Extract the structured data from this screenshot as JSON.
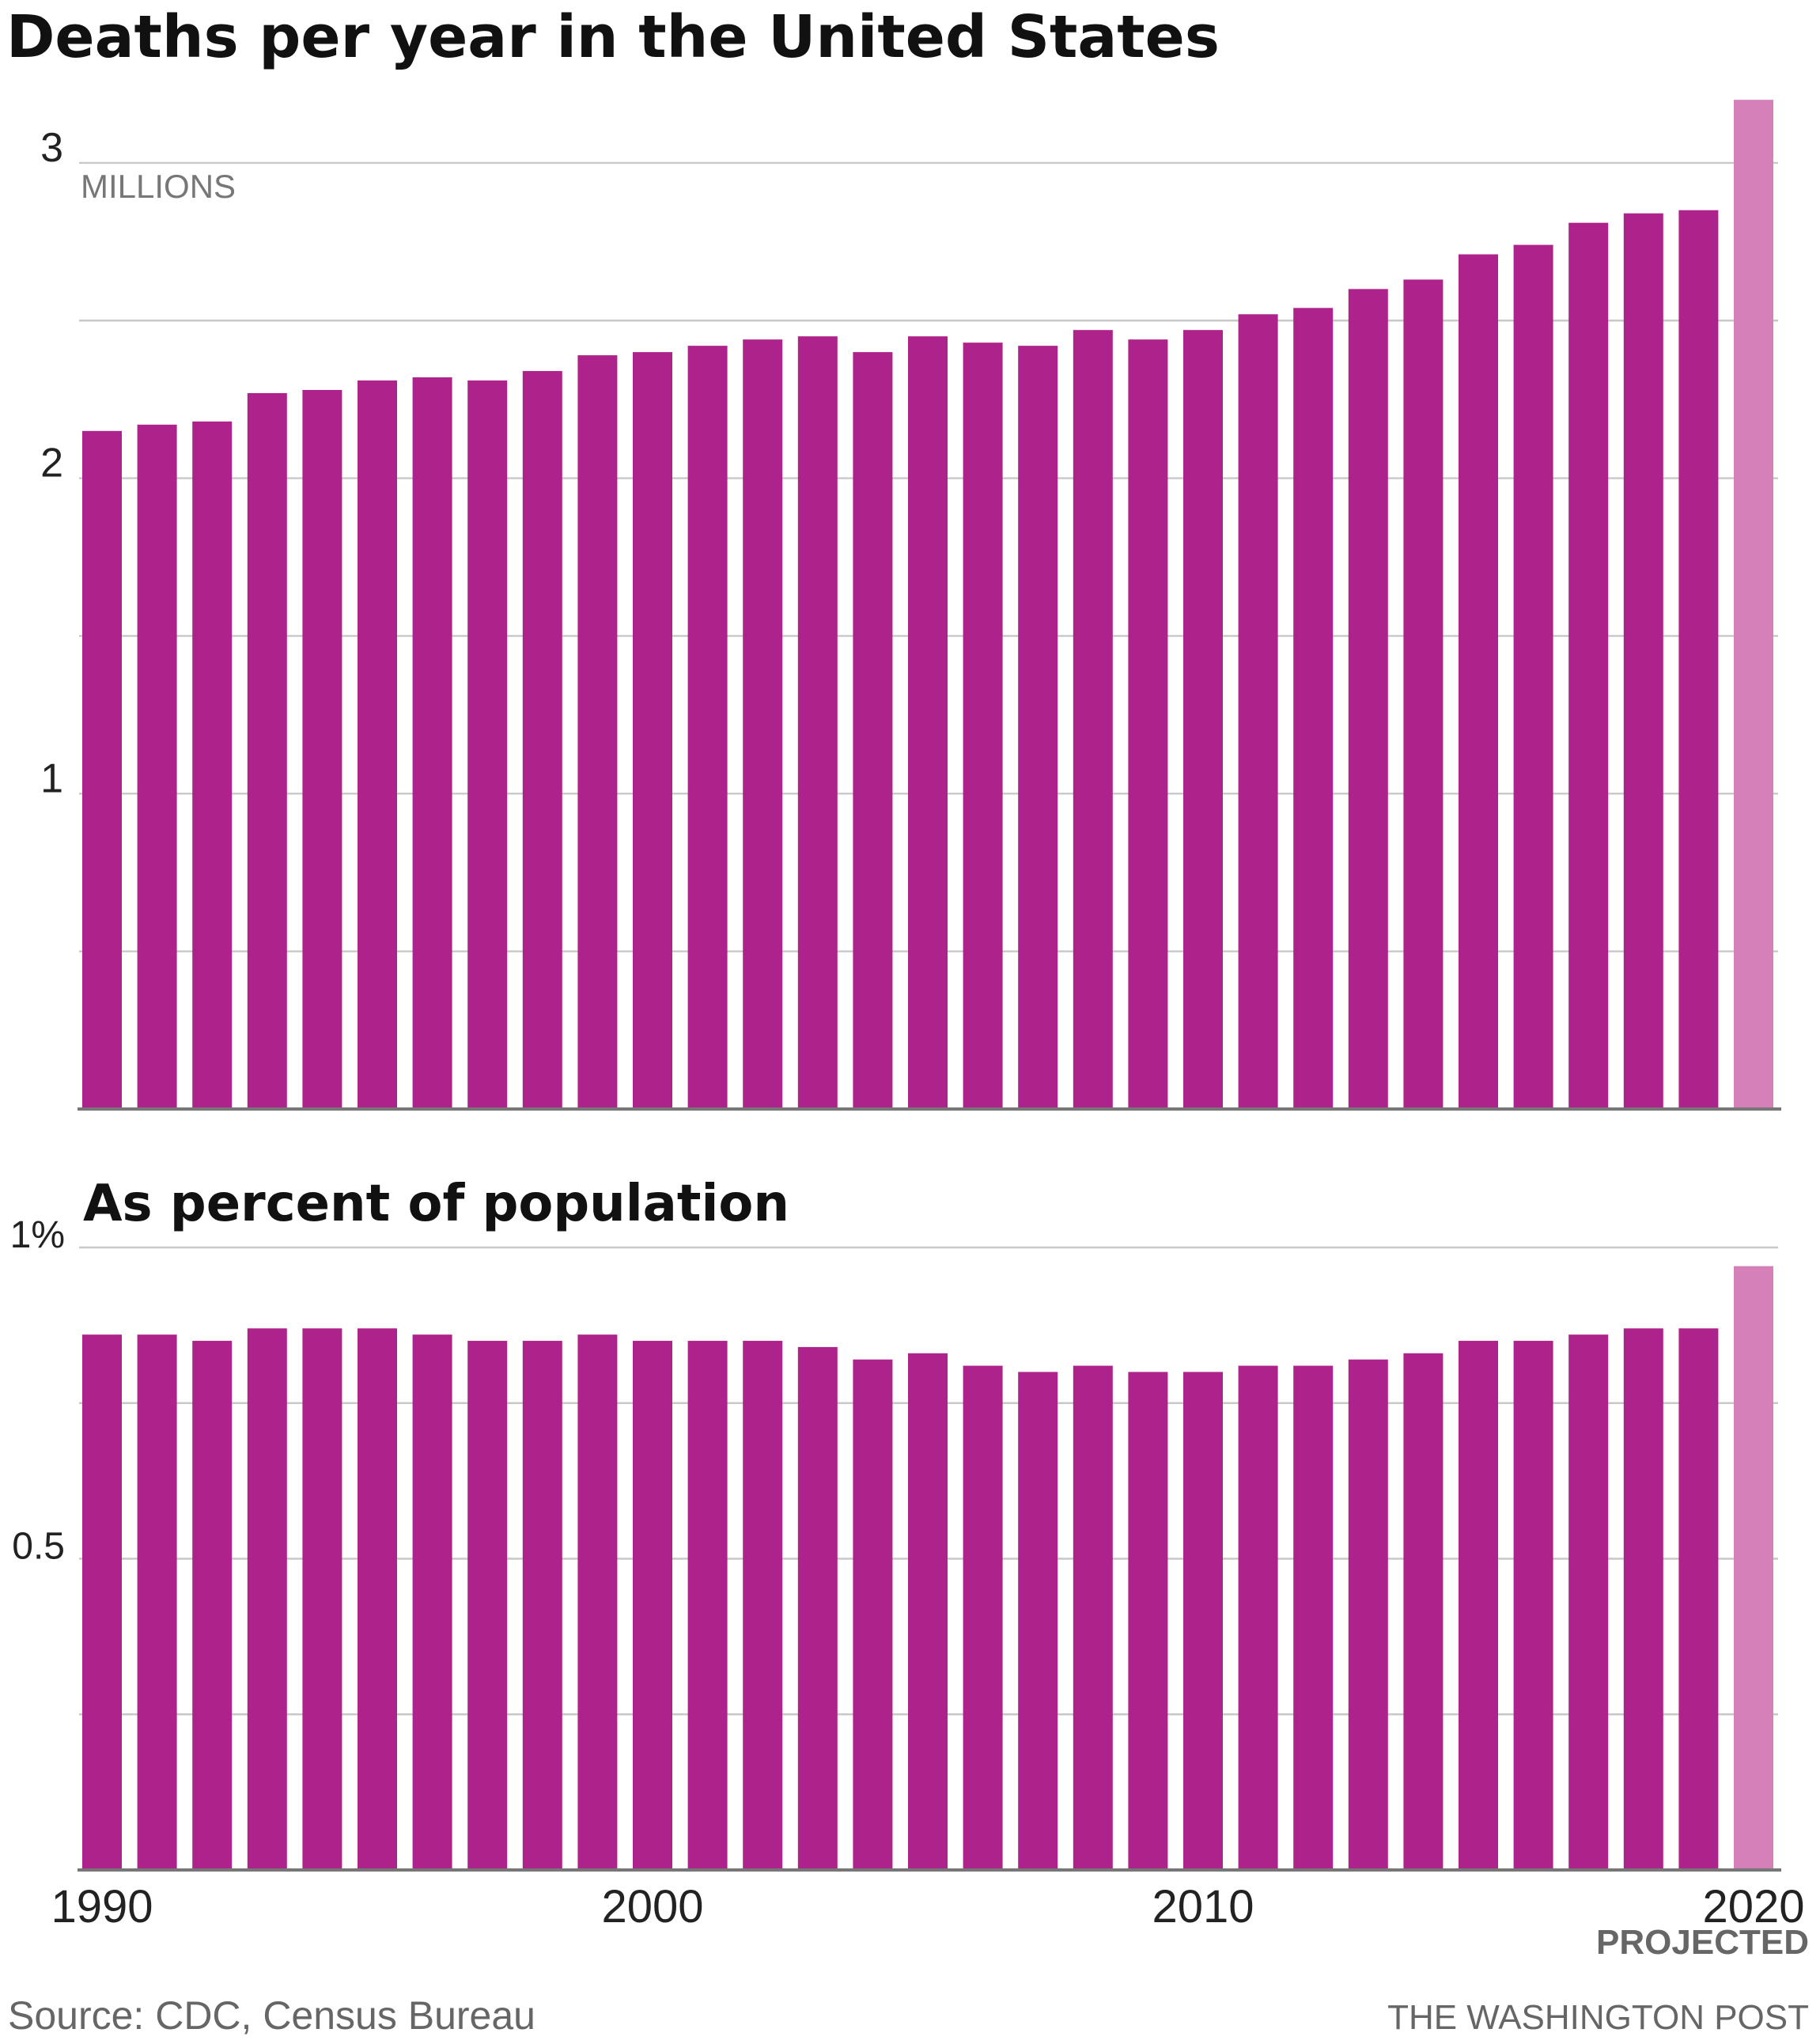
{
  "title": "Deaths per year in the United States",
  "colors": {
    "bar": "#ae238b",
    "projected": "#d581b8"
  },
  "chart_data": [
    {
      "type": "bar",
      "title": "Deaths per year in the United States",
      "unit_label": "MILLIONS",
      "x": [
        1990,
        1991,
        1992,
        1993,
        1994,
        1995,
        1996,
        1997,
        1998,
        1999,
        2000,
        2001,
        2002,
        2003,
        2004,
        2005,
        2006,
        2007,
        2008,
        2009,
        2010,
        2011,
        2012,
        2013,
        2014,
        2015,
        2016,
        2017,
        2018,
        2019,
        2020
      ],
      "values": [
        2.15,
        2.17,
        2.18,
        2.27,
        2.28,
        2.31,
        2.32,
        2.31,
        2.34,
        2.39,
        2.4,
        2.42,
        2.44,
        2.45,
        2.4,
        2.45,
        2.43,
        2.42,
        2.47,
        2.44,
        2.47,
        2.52,
        2.54,
        2.6,
        2.63,
        2.71,
        2.74,
        2.81,
        2.84,
        2.85,
        3.2
      ],
      "projected": [
        false,
        false,
        false,
        false,
        false,
        false,
        false,
        false,
        false,
        false,
        false,
        false,
        false,
        false,
        false,
        false,
        false,
        false,
        false,
        false,
        false,
        false,
        false,
        false,
        false,
        false,
        false,
        false,
        false,
        false,
        true
      ],
      "ylim": [
        0,
        3.2
      ],
      "yticks": [
        1,
        2,
        3
      ],
      "ytick_labels": [
        "1",
        "2",
        "3"
      ],
      "grid": true
    },
    {
      "type": "bar",
      "title": "As percent of population",
      "x": [
        1990,
        1991,
        1992,
        1993,
        1994,
        1995,
        1996,
        1997,
        1998,
        1999,
        2000,
        2001,
        2002,
        2003,
        2004,
        2005,
        2006,
        2007,
        2008,
        2009,
        2010,
        2011,
        2012,
        2013,
        2014,
        2015,
        2016,
        2017,
        2018,
        2019,
        2020
      ],
      "values": [
        0.86,
        0.86,
        0.85,
        0.87,
        0.87,
        0.87,
        0.86,
        0.85,
        0.85,
        0.86,
        0.85,
        0.85,
        0.85,
        0.84,
        0.82,
        0.83,
        0.81,
        0.8,
        0.81,
        0.8,
        0.8,
        0.81,
        0.81,
        0.82,
        0.83,
        0.85,
        0.85,
        0.86,
        0.87,
        0.87,
        0.97
      ],
      "projected": [
        false,
        false,
        false,
        false,
        false,
        false,
        false,
        false,
        false,
        false,
        false,
        false,
        false,
        false,
        false,
        false,
        false,
        false,
        false,
        false,
        false,
        false,
        false,
        false,
        false,
        false,
        false,
        false,
        false,
        false,
        true
      ],
      "ylim": [
        0,
        1
      ],
      "yticks": [
        0.5,
        1
      ],
      "ytick_labels": [
        "0.5",
        "1%"
      ],
      "grid": true,
      "xticks": [
        1990,
        2000,
        2010,
        2020
      ],
      "xtick_labels": [
        "1990",
        "2000",
        "2010",
        "2020"
      ],
      "annotation": "PROJECTED"
    }
  ],
  "footer": {
    "source": "Source: CDC, Census Bureau",
    "credit": "THE WASHINGTON POST"
  }
}
